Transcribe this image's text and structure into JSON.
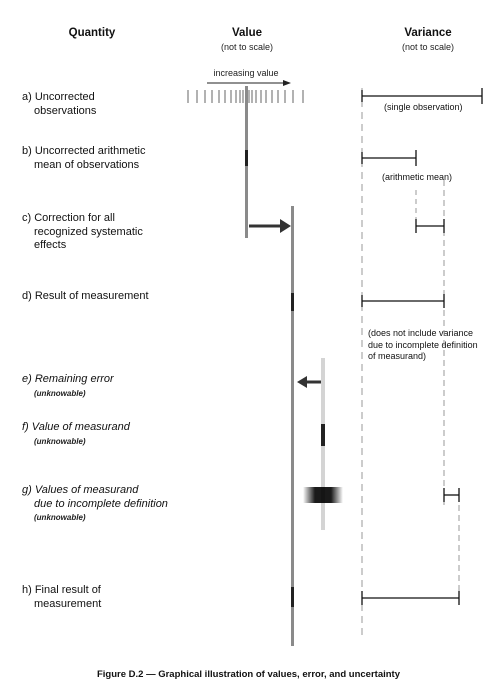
{
  "headers": {
    "quantity": "Quantity",
    "value": "Value",
    "value_sub": "(not to scale)",
    "variance": "Variance",
    "variance_sub": "(not to scale)"
  },
  "increasing_value": "increasing value",
  "rows": {
    "a": {
      "line1": "a) Uncorrected",
      "line2": "observations"
    },
    "b": {
      "line1": "b) Uncorrected arithmetic",
      "line2": "mean of observations"
    },
    "c": {
      "line1": "c) Correction for all",
      "line2": "recognized systematic",
      "line3": "effects"
    },
    "d": {
      "line1": "d) Result of measurement"
    },
    "e": {
      "line1": "e) Remaining error",
      "note": "(unknowable)"
    },
    "f": {
      "line1": "f) Value of measurand",
      "note": "(unknowable)"
    },
    "g": {
      "line1": "g) Values of measurand",
      "line2": "due to incomplete definition",
      "note": "(unknowable)"
    },
    "h": {
      "line1": "h) Final result of",
      "line2": "measurement"
    }
  },
  "variance_notes": {
    "a": "(single observation)",
    "b": "(arithmetic mean)",
    "d1": "(does not include variance",
    "d2": "due to incomplete definition",
    "d3": "of measurand)"
  },
  "caption": "Figure D.2 — Graphical illustration of values, error, and uncertainty"
}
